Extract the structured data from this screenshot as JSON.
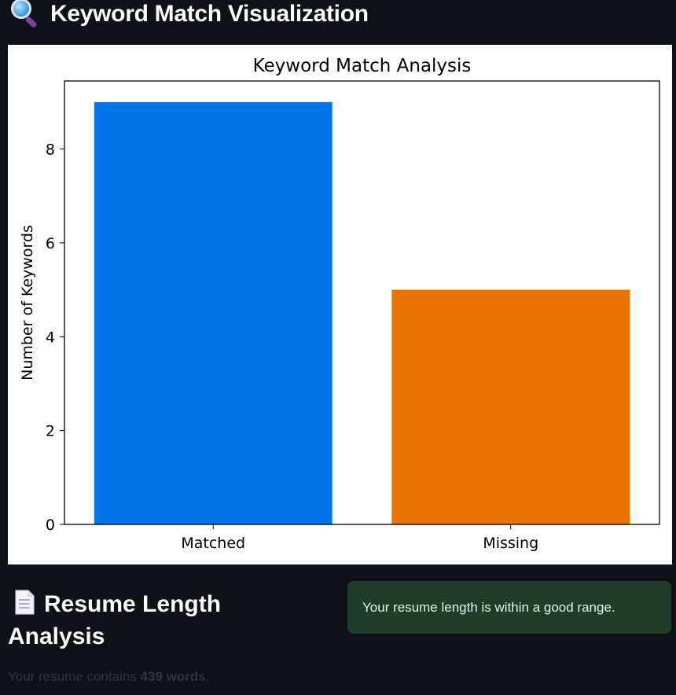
{
  "keyword_section": {
    "title": "Keyword Match Visualization",
    "icon": "magnifier-icon"
  },
  "chart_data": {
    "type": "bar",
    "title": "Keyword Match Analysis",
    "xlabel": "",
    "ylabel": "Number of Keywords",
    "categories": [
      "Matched",
      "Missing"
    ],
    "values": [
      9,
      5
    ],
    "colors": [
      "#0073e6",
      "#e67300"
    ],
    "ylim": [
      0,
      9.45
    ],
    "yticks": [
      0,
      2,
      4,
      6,
      8
    ],
    "grid": false
  },
  "resume_section": {
    "title": "Resume Length Analysis",
    "icon": "document-icon",
    "success_message": "Your resume length is within a good range.",
    "word_count_prefix": "Your resume contains ",
    "word_count_value": "439 words",
    "word_count_suffix": "."
  }
}
